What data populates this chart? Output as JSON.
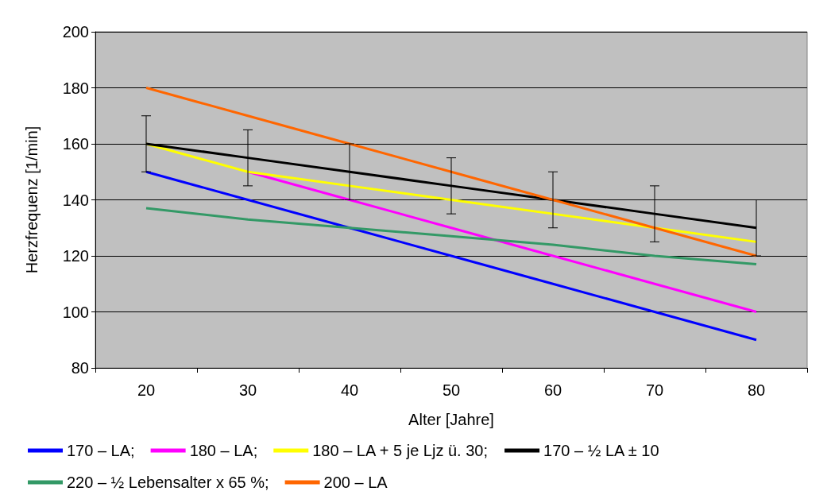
{
  "chart_data": {
    "type": "line",
    "xlabel": "Alter [Jahre]",
    "ylabel": "Herzfrequenz [1/min]",
    "categories": [
      "20",
      "30",
      "40",
      "50",
      "60",
      "70",
      "80"
    ],
    "ylim": [
      80,
      200
    ],
    "yticks": [
      80,
      100,
      120,
      140,
      160,
      180,
      200
    ],
    "grid": "y",
    "legend": "bottom",
    "marker": "none",
    "line_style": "solid",
    "series": [
      {
        "name": "170 – LA;",
        "color": "#0000ff",
        "values": [
          150,
          140,
          130,
          120,
          110,
          100,
          90
        ]
      },
      {
        "name": "180 – LA;",
        "color": "#ff00ff",
        "values": [
          null,
          150,
          140,
          130,
          120,
          110,
          100
        ]
      },
      {
        "name": "180 – LA + 5 je Ljz ü. 30;",
        "color": "#ffff00",
        "values": [
          160,
          150,
          145,
          140,
          135,
          130,
          125
        ]
      },
      {
        "name": "170 – ½ LA ± 10",
        "color": "#000000",
        "values": [
          160,
          155,
          150,
          145,
          140,
          135,
          130
        ],
        "errors": [
          10,
          10,
          10,
          10,
          10,
          10,
          10
        ]
      },
      {
        "name": "220 – ½ Lebensalter x 65 %;",
        "color": "#339966",
        "values": [
          137,
          133,
          130,
          127,
          124,
          120,
          117
        ]
      },
      {
        "name": "200 – LA",
        "color": "#ff6600",
        "values": [
          180,
          170,
          160,
          150,
          140,
          130,
          120
        ]
      }
    ]
  }
}
